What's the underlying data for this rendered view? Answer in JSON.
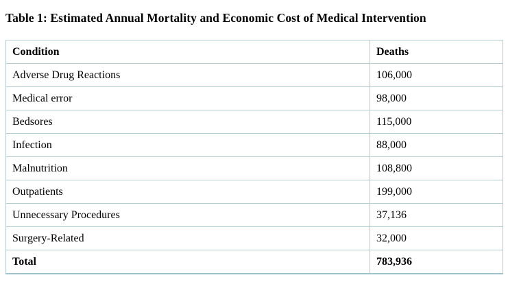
{
  "title": "Table 1: Estimated Annual Mortality and Economic Cost of Medical Intervention",
  "table": {
    "headers": {
      "condition": "Condition",
      "deaths": "Deaths"
    },
    "rows": [
      {
        "condition": "Adverse Drug Reactions",
        "deaths": "106,000"
      },
      {
        "condition": "Medical error",
        "deaths": "98,000"
      },
      {
        "condition": "Bedsores",
        "deaths": "115,000"
      },
      {
        "condition": "Infection",
        "deaths": "88,000"
      },
      {
        "condition": "Malnutrition",
        "deaths": "108,800"
      },
      {
        "condition": "Outpatients",
        "deaths": "199,000"
      },
      {
        "condition": "Unnecessary Procedures",
        "deaths": "37,136"
      },
      {
        "condition": "Surgery-Related",
        "deaths": "32,000"
      }
    ],
    "total": {
      "condition": "Total",
      "deaths": "783,936"
    }
  },
  "colors": {
    "border": "#b2ccd2",
    "outer_bottom_border": "#9cc3cb",
    "text": "#000000",
    "background": "#ffffff"
  }
}
